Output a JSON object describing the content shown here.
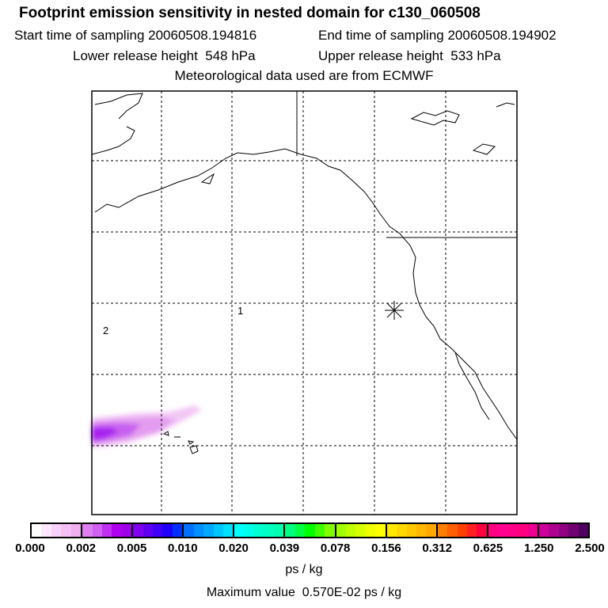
{
  "header": {
    "title": "Footprint emission sensitivity in nested domain for c130_060508",
    "start_time": "Start time of sampling 20060508.194816",
    "end_time": "End time of sampling 20060508.194902",
    "lower_height": "Lower release height  548 hPa",
    "upper_height": "Upper release height  533 hPa",
    "met_data": "Meteorological data used are from ECMWF"
  },
  "map": {
    "markers": [
      {
        "label": "1",
        "kind": "trajectory-label"
      },
      {
        "label": "2",
        "kind": "trajectory-label"
      }
    ],
    "release_site_icon": "asterisk-icon",
    "plume_color": "#a000e8"
  },
  "colorbar": {
    "ticks": [
      "0.000",
      "0.002",
      "0.005",
      "0.010",
      "0.020",
      "0.039",
      "0.078",
      "0.156",
      "0.312",
      "0.625",
      "1.250",
      "2.500"
    ],
    "segments": [
      [
        "#ffffff",
        "#fde8fd",
        "#f9d0f9",
        "#f5c0f5",
        "#f0b0f0"
      ],
      [
        "#e080f0",
        "#d060f0",
        "#c030f0",
        "#b000f0",
        "#a000e8"
      ],
      [
        "#8000f0",
        "#6000f0",
        "#4000f8",
        "#2000f8",
        "#0030ff"
      ],
      [
        "#0070ff",
        "#0090ff",
        "#00a8ff",
        "#00c8ff",
        "#00e0ff"
      ],
      [
        "#00ffff",
        "#00ffe8",
        "#00ffd0",
        "#00ffc0",
        "#00ffb0"
      ],
      [
        "#00ff80",
        "#00ff40",
        "#00ff00",
        "#40ff00",
        "#80ff00"
      ],
      [
        "#a0ff00",
        "#c0ff00",
        "#d8ff00",
        "#f0ff00",
        "#ffff00"
      ],
      [
        "#ffe800",
        "#ffd800",
        "#ffc800",
        "#ffb800",
        "#ffa800"
      ],
      [
        "#ff8000",
        "#ff6000",
        "#ff4000",
        "#ff2020",
        "#ff0040"
      ],
      [
        "#ff0080",
        "#ff0090",
        "#ff0088",
        "#ff0080",
        "#f00090"
      ],
      [
        "#d0009a",
        "#b00090",
        "#900080",
        "#700070",
        "#500060"
      ]
    ],
    "unit": "ps / kg",
    "max_value": "Maximum value  0.570E-02 ps / kg"
  }
}
